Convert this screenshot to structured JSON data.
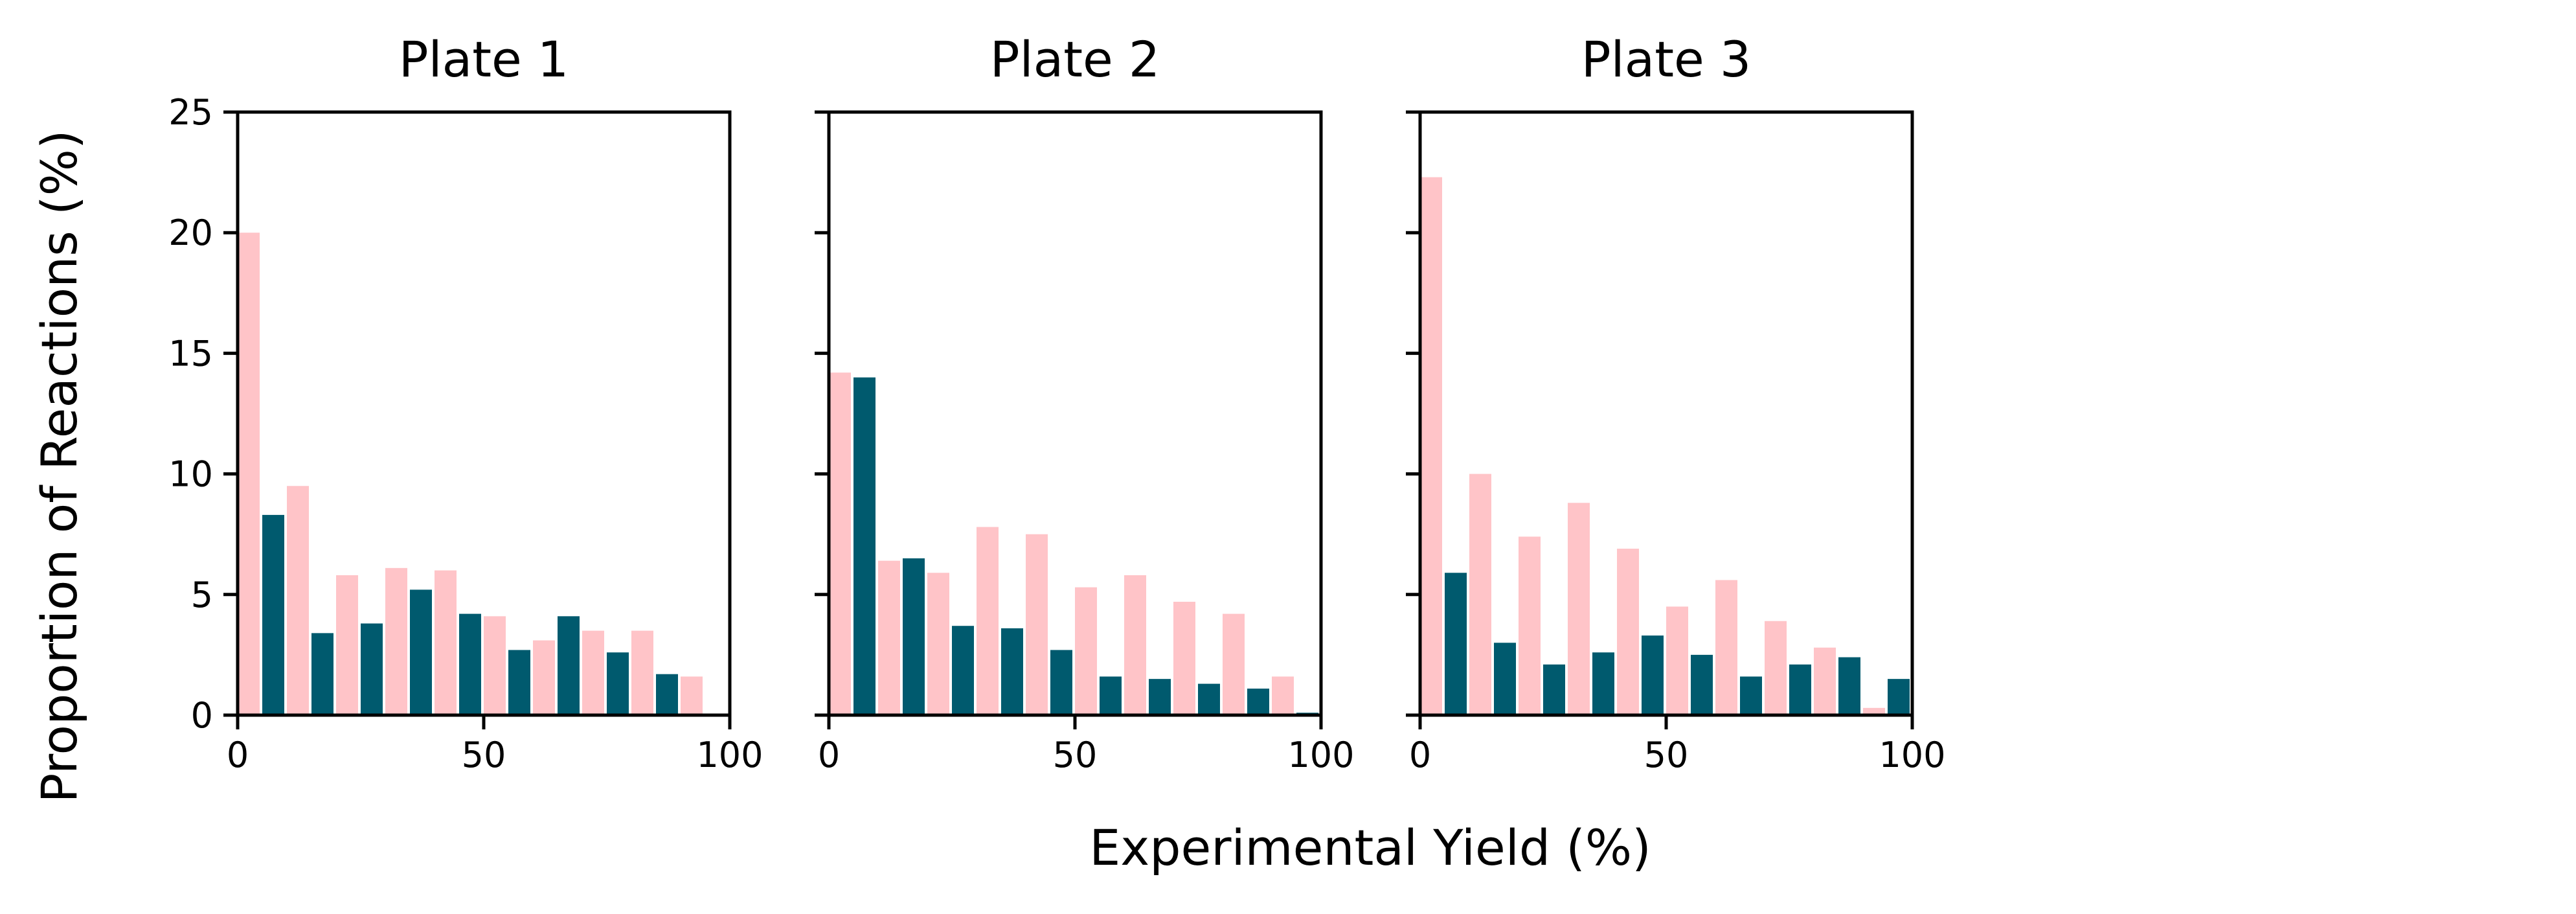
{
  "chart_data": {
    "type": "bar",
    "xlabel": "Experimental Yield (%)",
    "ylabel": "Proportion of Reactions (%)",
    "xlim": [
      0,
      100
    ],
    "ylim": [
      0,
      25
    ],
    "xticks": [
      0,
      50,
      100
    ],
    "yticks": [
      0,
      5,
      10,
      15,
      20,
      25
    ],
    "grid": false,
    "legend": "none",
    "bin_edges": [
      0,
      10,
      20,
      30,
      40,
      50,
      60,
      70,
      80,
      90,
      100
    ],
    "colors": {
      "pink": "#ffc4c8",
      "teal": "#005a6e"
    },
    "panels": [
      {
        "title": "Plate 1",
        "series": [
          {
            "color": "#ffc4c8",
            "values": [
              20.0,
              9.5,
              5.8,
              6.1,
              6.0,
              4.1,
              3.1,
              3.5,
              3.5,
              1.6
            ]
          },
          {
            "color": "#005a6e",
            "values": [
              8.3,
              3.4,
              3.8,
              5.2,
              4.2,
              2.7,
              4.1,
              2.6,
              1.7,
              0.0
            ]
          }
        ]
      },
      {
        "title": "Plate 2",
        "series": [
          {
            "color": "#ffc4c8",
            "values": [
              14.2,
              6.4,
              5.9,
              7.8,
              7.5,
              5.3,
              5.8,
              4.7,
              4.2,
              1.6
            ]
          },
          {
            "color": "#005a6e",
            "values": [
              14.0,
              6.5,
              3.7,
              3.6,
              2.7,
              1.6,
              1.5,
              1.3,
              1.1,
              0.1
            ]
          }
        ]
      },
      {
        "title": "Plate 3",
        "series": [
          {
            "color": "#ffc4c8",
            "values": [
              22.3,
              10.0,
              7.4,
              8.8,
              6.9,
              4.5,
              5.6,
              3.9,
              2.8,
              0.3
            ]
          },
          {
            "color": "#005a6e",
            "values": [
              5.9,
              3.0,
              2.1,
              2.6,
              3.3,
              2.5,
              1.6,
              2.1,
              2.4,
              1.5
            ]
          }
        ]
      }
    ]
  }
}
